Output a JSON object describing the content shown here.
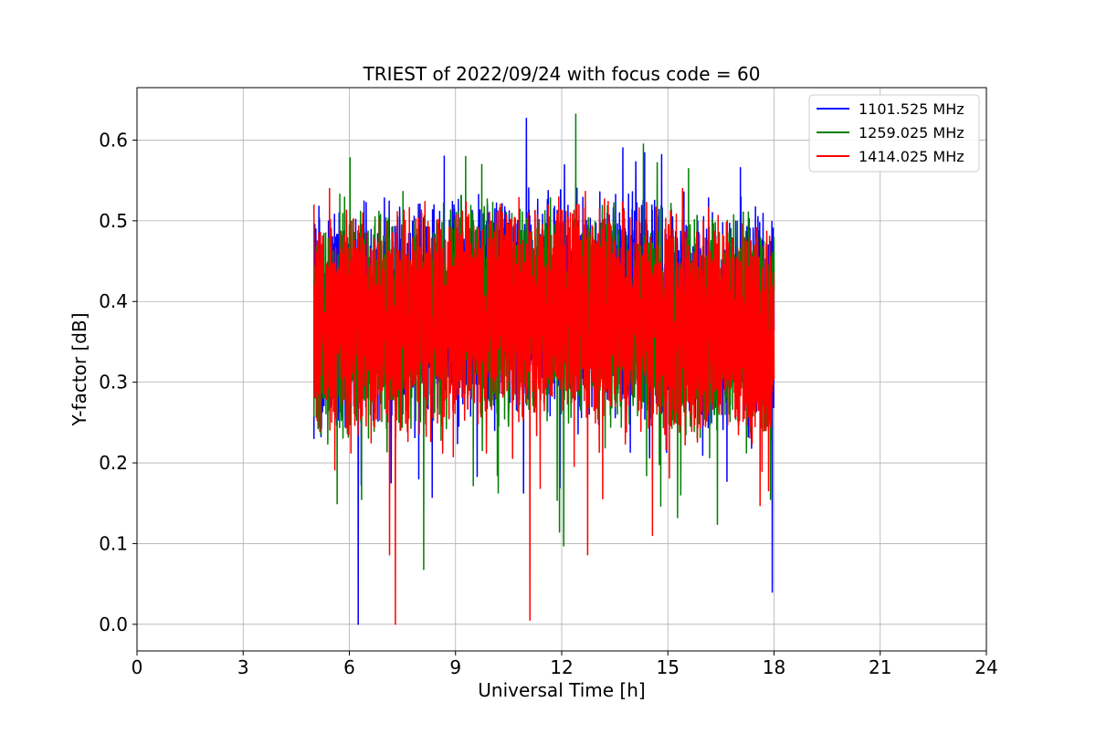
{
  "chart_data": {
    "type": "line",
    "title": "TRIEST of 2022/09/24 with focus code = 60",
    "xlabel": "Universal Time [h]",
    "ylabel": "Y-factor [dB]",
    "xlim": [
      0,
      24
    ],
    "ylim": [
      -0.033,
      0.665
    ],
    "x_ticks": [
      0,
      3,
      6,
      9,
      12,
      15,
      18,
      21,
      24
    ],
    "y_ticks": [
      0.0,
      0.1,
      0.2,
      0.3,
      0.4,
      0.5,
      0.6
    ],
    "x_tick_labels": [
      "0",
      "3",
      "6",
      "9",
      "12",
      "15",
      "18",
      "21",
      "24"
    ],
    "y_tick_labels": [
      "0.0",
      "0.1",
      "0.2",
      "0.3",
      "0.4",
      "0.5",
      "0.6"
    ],
    "grid": true,
    "legend_position": "top-right",
    "x_range_of_data": [
      5.0,
      18.0
    ],
    "series": [
      {
        "name": "1101.525 MHz",
        "color": "#0000ff",
        "mean": 0.37,
        "min": 0.0,
        "max": 0.627,
        "notable_points": [
          [
            6.25,
            0.0
          ],
          [
            11.0,
            0.627
          ],
          [
            17.95,
            0.04
          ]
        ]
      },
      {
        "name": "1259.025 MHz",
        "color": "#008000",
        "mean": 0.36,
        "min": 0.068,
        "max": 0.632,
        "notable_points": [
          [
            12.4,
            0.632
          ],
          [
            8.1,
            0.068
          ]
        ]
      },
      {
        "name": "1414.025 MHz",
        "color": "#ff0000",
        "mean": 0.36,
        "min": 0.0,
        "max": 0.55,
        "notable_points": [
          [
            7.3,
            0.0
          ],
          [
            11.1,
            0.005
          ],
          [
            5.0,
            0.52
          ]
        ]
      }
    ]
  }
}
